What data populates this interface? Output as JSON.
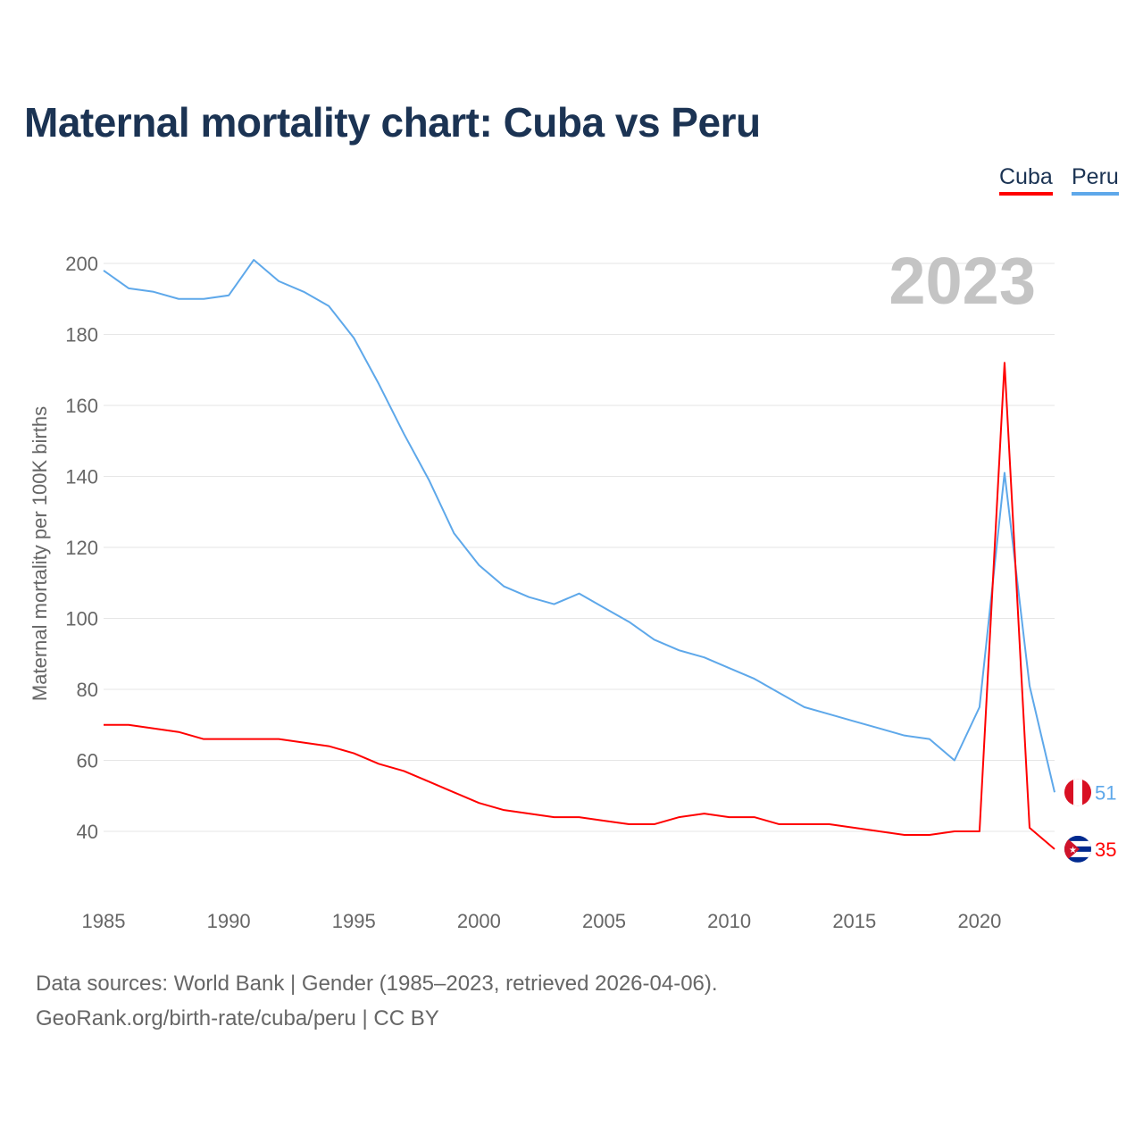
{
  "chart_data": {
    "type": "line",
    "title": "Maternal mortality chart: Cuba vs Peru",
    "ylabel": "Maternal mortality per 100K births",
    "xlabel": "",
    "xlim": [
      1985,
      2023
    ],
    "ylim": [
      25,
      210
    ],
    "x_ticks": [
      "1985",
      "1990",
      "1995",
      "2000",
      "2005",
      "2010",
      "2015",
      "2020"
    ],
    "y_ticks": [
      "40",
      "60",
      "80",
      "100",
      "120",
      "140",
      "160",
      "180",
      "200"
    ],
    "year_watermark": "2023",
    "legend_position": "top-right",
    "x": [
      1985,
      1986,
      1987,
      1988,
      1989,
      1990,
      1991,
      1992,
      1993,
      1994,
      1995,
      1996,
      1997,
      1998,
      1999,
      2000,
      2001,
      2002,
      2003,
      2004,
      2005,
      2006,
      2007,
      2008,
      2009,
      2010,
      2011,
      2012,
      2013,
      2014,
      2015,
      2016,
      2017,
      2018,
      2019,
      2020,
      2021,
      2022,
      2023
    ],
    "series": [
      {
        "name": "Cuba",
        "color": "#ff0000",
        "end_label": "35",
        "values": [
          70,
          70,
          69,
          68,
          66,
          66,
          66,
          66,
          65,
          64,
          62,
          59,
          57,
          54,
          51,
          48,
          46,
          45,
          44,
          44,
          43,
          42,
          42,
          44,
          45,
          44,
          44,
          42,
          42,
          42,
          41,
          40,
          39,
          39,
          40,
          40,
          172,
          41,
          35
        ]
      },
      {
        "name": "Peru",
        "color": "#5ea8ea",
        "end_label": "51",
        "values": [
          198,
          193,
          192,
          190,
          190,
          191,
          201,
          195,
          192,
          188,
          179,
          166,
          152,
          139,
          124,
          115,
          109,
          106,
          104,
          107,
          103,
          99,
          94,
          91,
          89,
          86,
          83,
          79,
          75,
          73,
          71,
          69,
          67,
          66,
          60,
          75,
          141,
          81,
          51
        ]
      }
    ]
  },
  "footer": {
    "line1": "Data sources: World Bank | Gender (1985–2023, retrieved 2026-04-06).",
    "line2": "GeoRank.org/birth-rate/cuba/peru | CC BY"
  }
}
